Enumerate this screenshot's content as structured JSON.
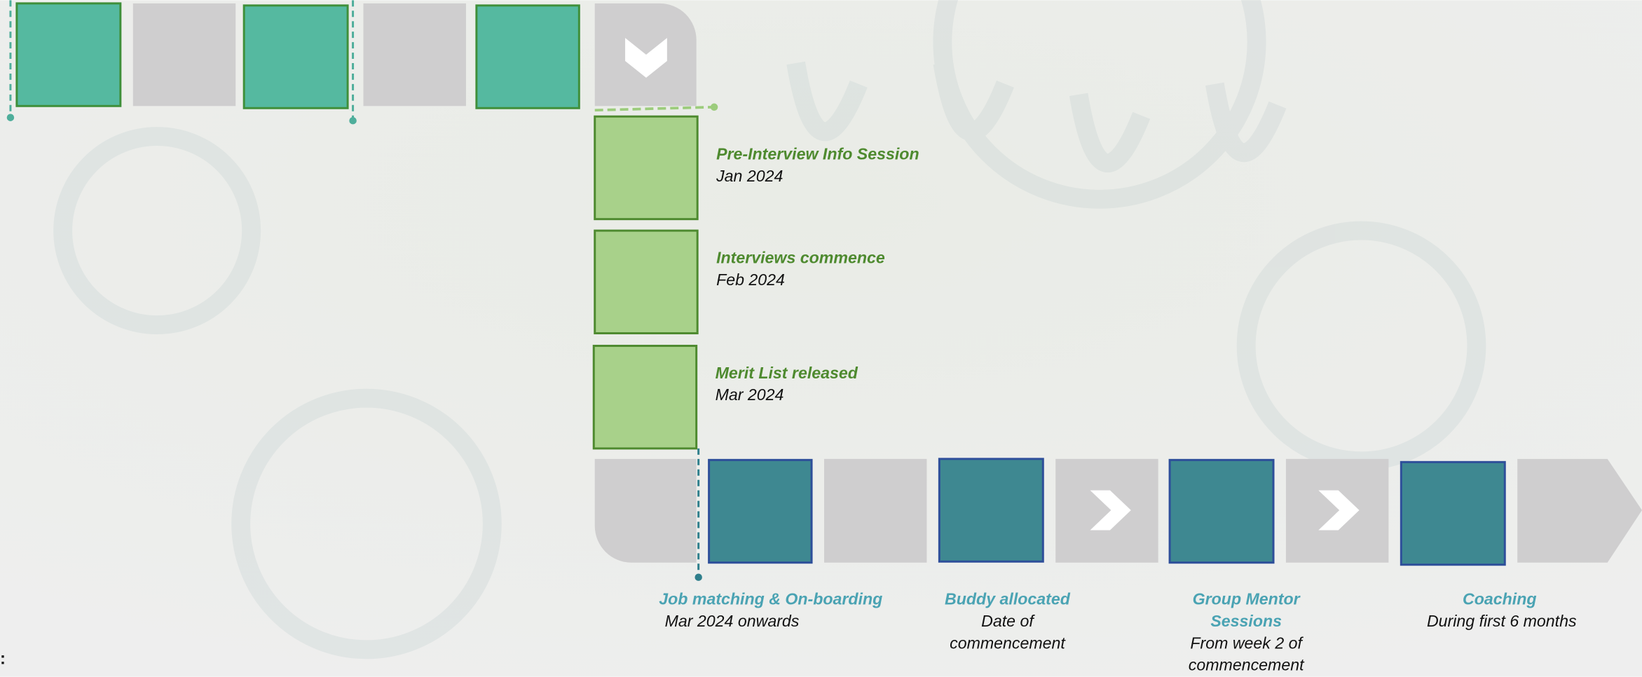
{
  "phases": [
    {
      "title": "Pre-Interview Info Session",
      "date": "Jan 2024"
    },
    {
      "title": "Interviews commence",
      "date": "Feb 2024"
    },
    {
      "title": "Merit List released",
      "date": "Mar 2024"
    }
  ],
  "support": [
    {
      "title": [
        "Job matching & On-boarding"
      ],
      "date": [
        "Mar 2024 onwards"
      ]
    },
    {
      "title": [
        "Buddy allocated"
      ],
      "date": [
        "Date of",
        "commencement"
      ]
    },
    {
      "title": [
        "Group Mentor",
        "Sessions"
      ],
      "date": [
        "From week 2 of",
        "commencement"
      ]
    },
    {
      "title": [
        "Coaching"
      ],
      "date": [
        "During first 6 months"
      ]
    }
  ],
  "footer_mark": ":"
}
